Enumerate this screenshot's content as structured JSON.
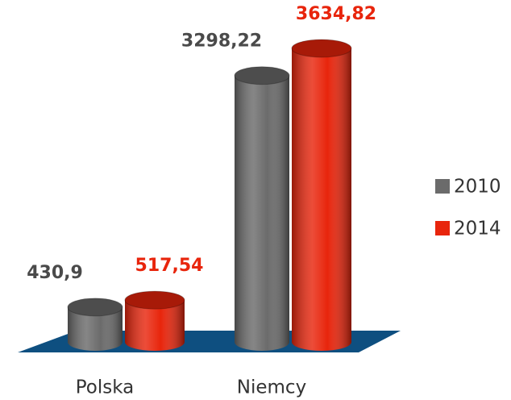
{
  "chart_data": {
    "type": "bar3d",
    "categories": [
      "Polska",
      "Niemcy"
    ],
    "series": [
      {
        "name": "2010",
        "color": "#6b6b6b",
        "values": [
          430.9,
          3298.22
        ],
        "value_labels": [
          "430,9",
          "3298,22"
        ]
      },
      {
        "name": "2014",
        "color": "#e8250c",
        "values": [
          517.54,
          3634.82
        ],
        "value_labels": [
          "517,54",
          "3634,82"
        ]
      }
    ],
    "legend": "right"
  }
}
